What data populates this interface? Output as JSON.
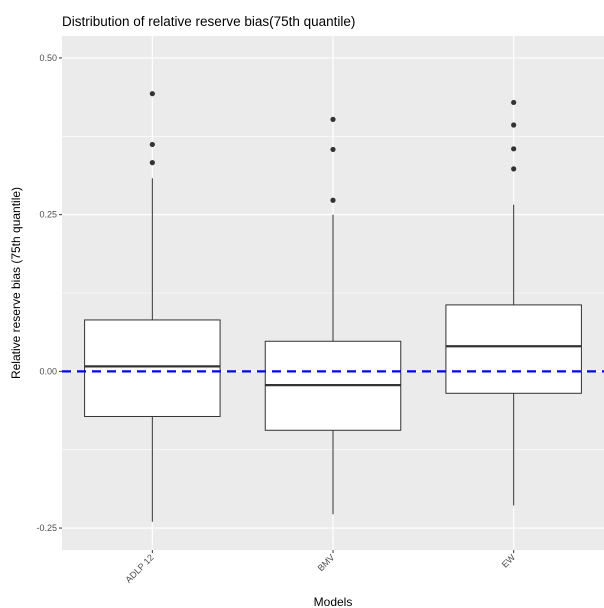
{
  "chart_data": {
    "type": "box",
    "title": "Distribution of relative reserve bias(75th quantile)",
    "xlabel": "Models",
    "ylabel": "Relative reserve bias (75th quantile)",
    "categories": [
      "ADLP 12",
      "BMV",
      "EW"
    ],
    "ylim": [
      -0.285,
      0.535
    ],
    "yticks": [
      -0.25,
      0.0,
      0.25,
      0.5
    ],
    "ytick_labels": [
      "-0.25",
      "0.00",
      "0.25",
      "0.50"
    ],
    "boxes": [
      {
        "category": "ADLP 12",
        "whisker_low": -0.24,
        "q1": -0.072,
        "median": 0.008,
        "q3": 0.082,
        "whisker_high": 0.308,
        "outliers": [
          0.333,
          0.362,
          0.443
        ]
      },
      {
        "category": "BMV",
        "whisker_low": -0.228,
        "q1": -0.094,
        "median": -0.022,
        "q3": 0.048,
        "whisker_high": 0.25,
        "outliers": [
          0.273,
          0.354,
          0.402
        ]
      },
      {
        "category": "EW",
        "whisker_low": -0.214,
        "q1": -0.035,
        "median": 0.04,
        "q3": 0.106,
        "whisker_high": 0.266,
        "outliers": [
          0.323,
          0.355,
          0.393,
          0.429
        ]
      }
    ],
    "reference_line": {
      "y": 0.0,
      "color": "#0000ff",
      "style": "dashed"
    },
    "grid": true,
    "colors": {
      "panel": "#ebebeb",
      "grid": "#ffffff",
      "box_fill": "#ffffff",
      "box_stroke": "#333333"
    }
  }
}
